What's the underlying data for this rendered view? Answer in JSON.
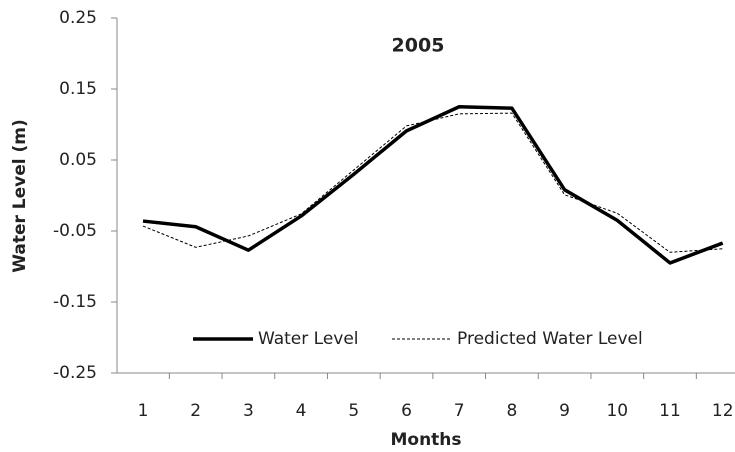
{
  "chart_data": {
    "type": "line",
    "title": "2005",
    "x_label": "Months",
    "y_label": "Water Level (m)",
    "categories": [
      1,
      2,
      3,
      4,
      5,
      6,
      7,
      8,
      9,
      10,
      11,
      12
    ],
    "series": [
      {
        "name": "Water Level",
        "color": "#000000",
        "width": 3.5,
        "dashed": false,
        "values": [
          -0.036,
          -0.044,
          -0.077,
          -0.029,
          0.03,
          0.091,
          0.125,
          0.123,
          0.008,
          -0.035,
          -0.095,
          -0.067
        ]
      },
      {
        "name": "Predicted Water Level",
        "color": "#000000",
        "width": 1,
        "dashed": true,
        "values": [
          -0.043,
          -0.073,
          -0.057,
          -0.026,
          0.036,
          0.098,
          0.115,
          0.116,
          0.001,
          -0.025,
          -0.08,
          -0.075
        ]
      }
    ],
    "ylim": [
      -0.25,
      0.25
    ],
    "yticks": [
      -0.25,
      -0.15,
      -0.05,
      0.05,
      0.15,
      0.25
    ],
    "grid": false
  }
}
